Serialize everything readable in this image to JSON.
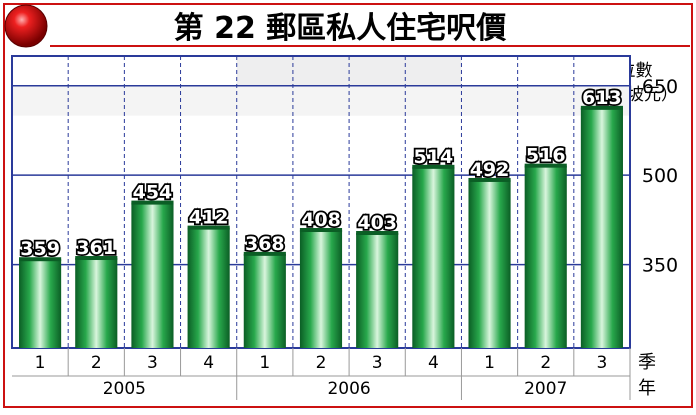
{
  "chart_data": {
    "type": "bar",
    "title": "第 22 郵區私人住宅呎價",
    "ylabel_line1": "中位數",
    "ylabel_line2": "（新加坡元）",
    "xlabel_line1": "季",
    "xlabel_line2": "年",
    "ylim": [
      210,
      700
    ],
    "yticks": [
      350,
      500,
      650
    ],
    "years": [
      {
        "label": "2005",
        "quarters": 4
      },
      {
        "label": "2006",
        "quarters": 4
      },
      {
        "label": "2007",
        "quarters": 3
      }
    ],
    "categories": [
      "1",
      "2",
      "3",
      "4",
      "1",
      "2",
      "3",
      "4",
      "1",
      "2",
      "3"
    ],
    "values": [
      359,
      361,
      454,
      412,
      368,
      408,
      403,
      514,
      492,
      516,
      613
    ],
    "bar_color": "#1a8a3c",
    "grid": true
  },
  "colors": {
    "accent_red": "#cc1111",
    "grid_blue": "#2a3a9a",
    "title_text": "#000000"
  }
}
